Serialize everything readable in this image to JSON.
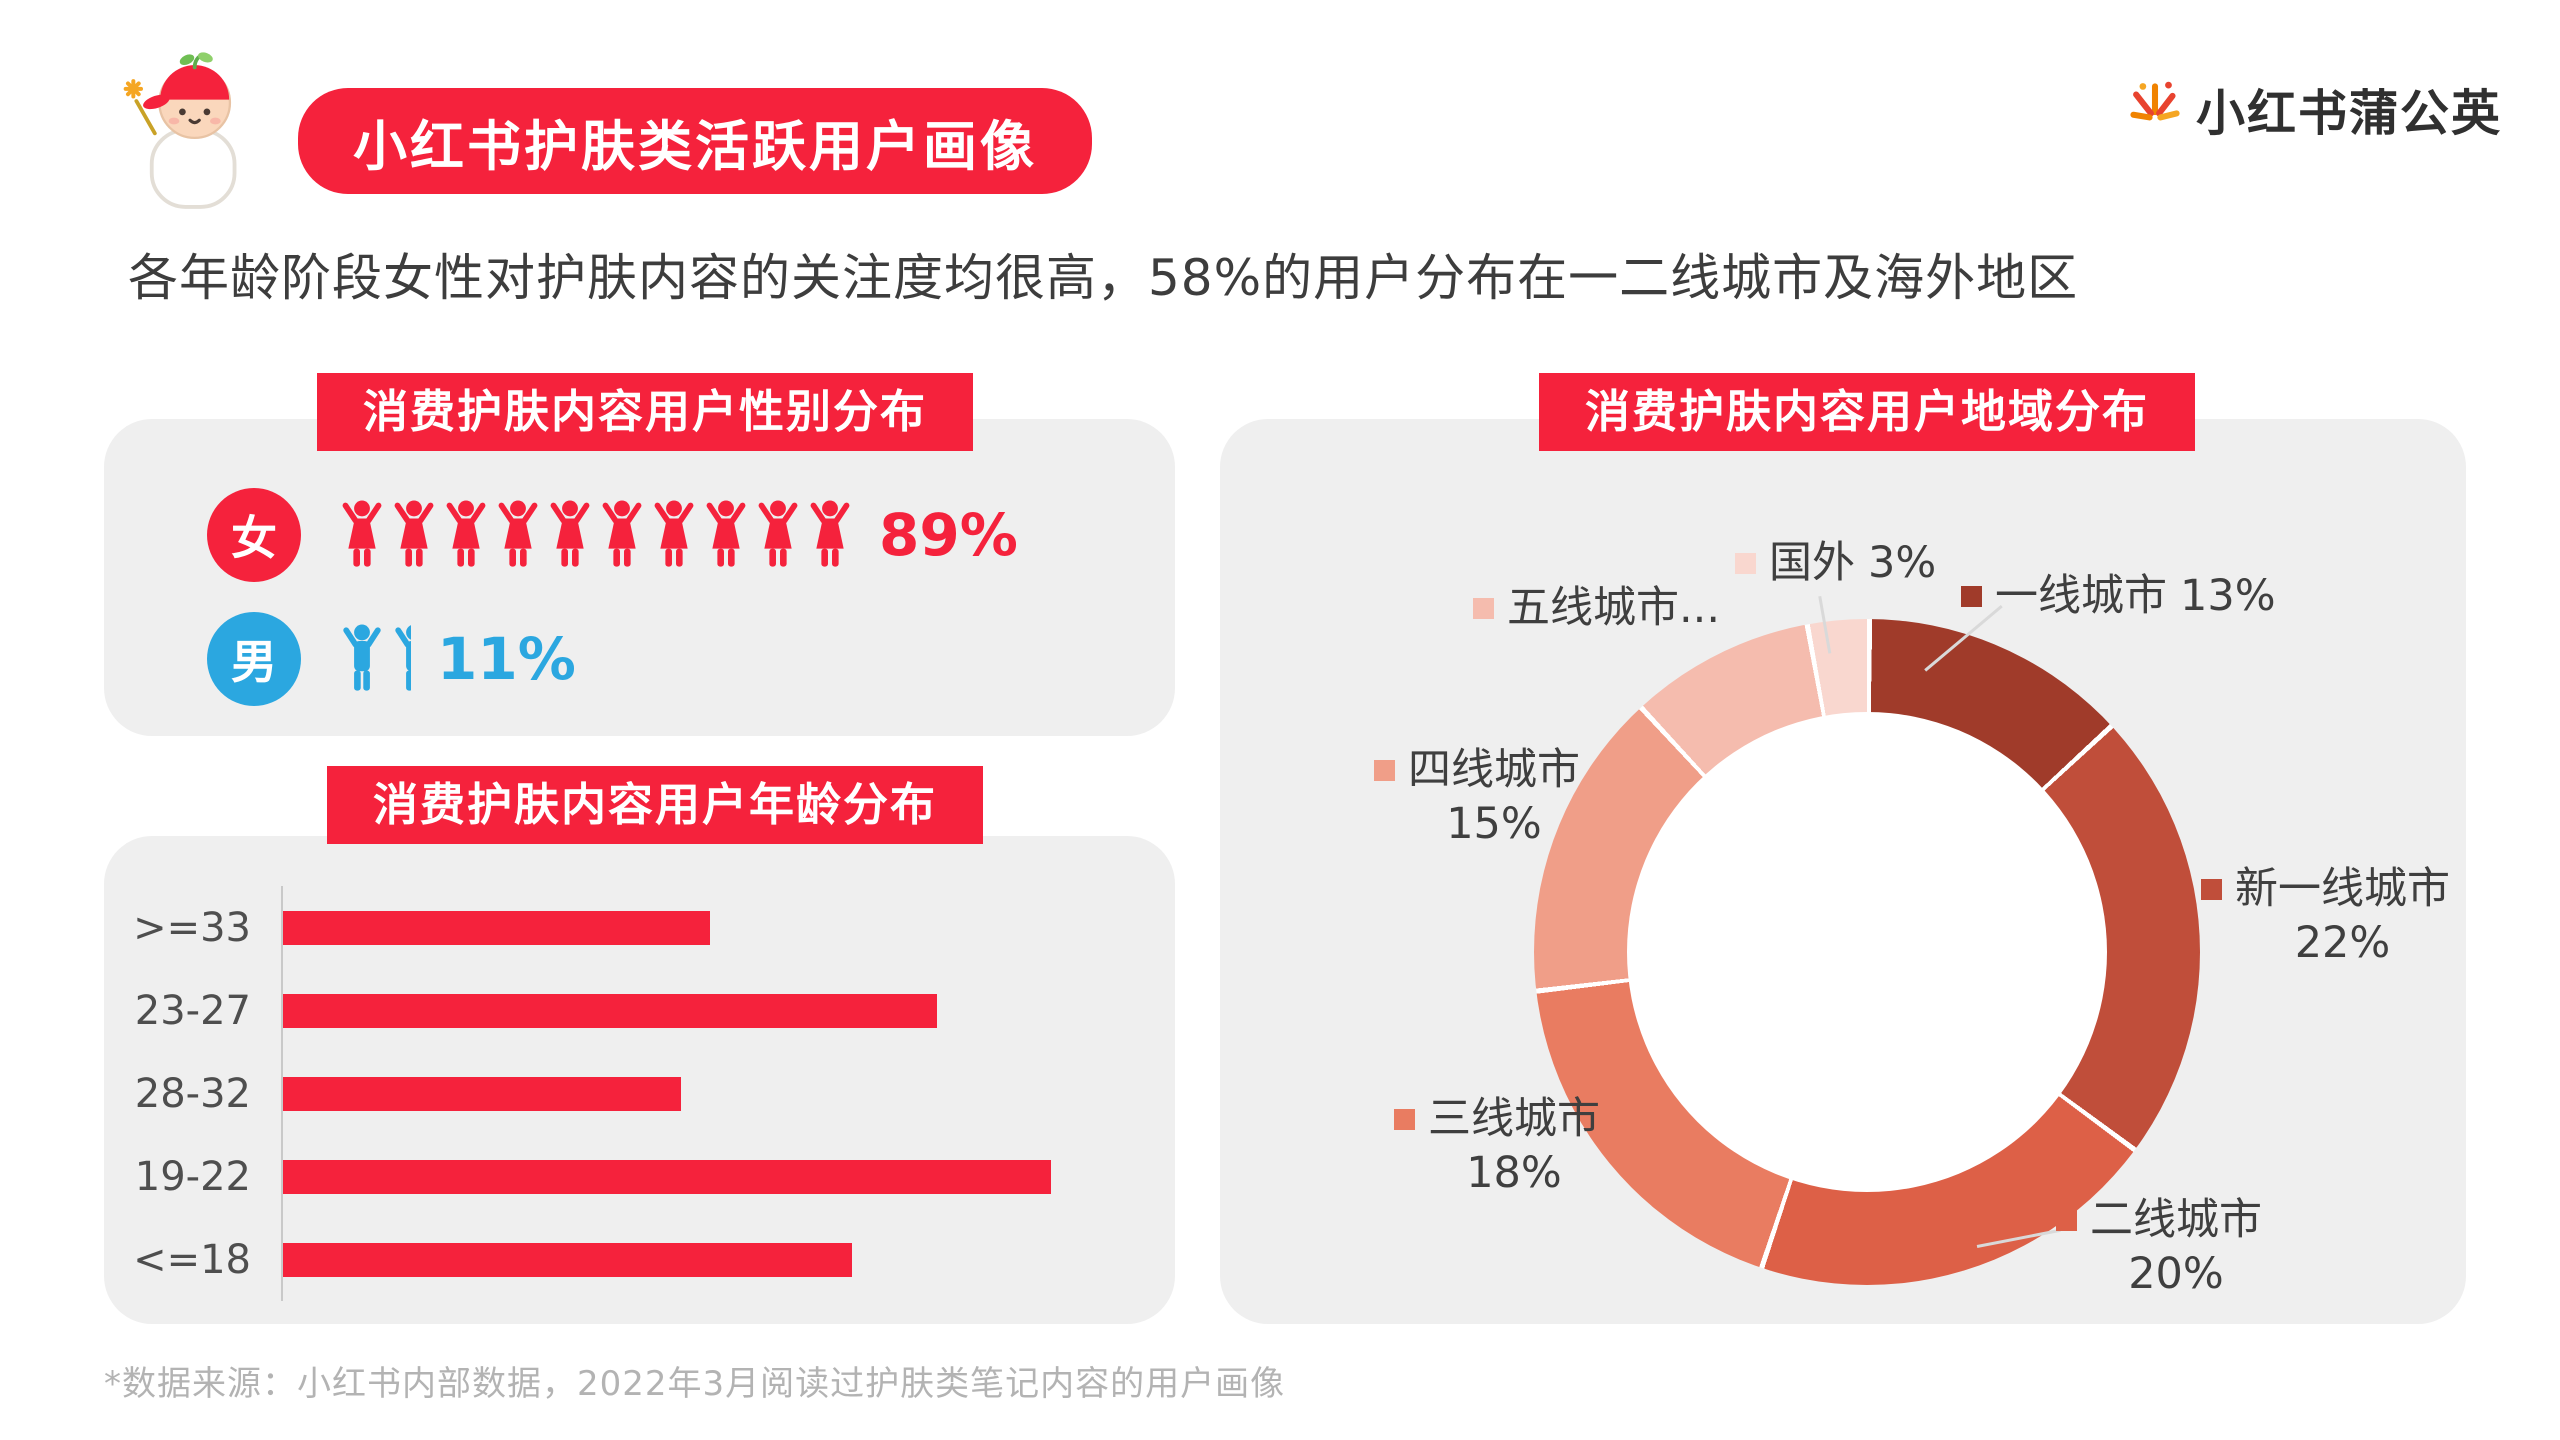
{
  "theme": {
    "accent": "#F5223C",
    "male_blue": "#2BA7E0",
    "panel_bg": "#EFEFEF"
  },
  "header": {
    "badge_title": "小红书护肤类活跃用户画像",
    "logo_text": "小红书蒲公英",
    "subtitle": "各年龄阶段女性对护肤内容的关注度均很高，58%的用户分布在一二线城市及海外地区"
  },
  "gender_panel": {
    "title": "消费护肤内容用户性别分布",
    "female": {
      "label": "女",
      "percent": "89%",
      "icon_count": 10,
      "color": "#F5223C"
    },
    "male": {
      "label": "男",
      "percent": "11%",
      "icon_count_full": 1,
      "partial_icon": true,
      "color": "#2BA7E0"
    }
  },
  "age_panel": {
    "title": "消费护肤内容用户年龄分布",
    "rows": [
      {
        "label": ">=33",
        "value": 15
      },
      {
        "label": "23-27",
        "value": 23
      },
      {
        "label": "28-32",
        "value": 14
      },
      {
        "label": "19-22",
        "value": 27
      },
      {
        "label": "<=18",
        "value": 20
      }
    ]
  },
  "region_panel": {
    "title": "消费护肤内容用户地域分布",
    "slices": [
      {
        "name": "一线城市",
        "display": "一线城市",
        "value": 13,
        "pct": "13%",
        "color": "#A03B2A"
      },
      {
        "name": "新一线城市",
        "display": "新一线城市",
        "value": 22,
        "pct": "22%",
        "color": "#C04E3A"
      },
      {
        "name": "二线城市",
        "display": "二线城市",
        "value": 20,
        "pct": "20%",
        "color": "#DD6047"
      },
      {
        "name": "三线城市",
        "display": "三线城市",
        "value": 18,
        "pct": "18%",
        "color": "#E97C61"
      },
      {
        "name": "四线城市",
        "display": "四线城市",
        "value": 15,
        "pct": "15%",
        "color": "#F09E88"
      },
      {
        "name": "五线城市",
        "display": "五线城市...",
        "value": 9,
        "pct": "",
        "color": "#F5BCAE"
      },
      {
        "name": "国外",
        "display": "国外",
        "value": 3,
        "pct": "3%",
        "color": "#F9D7CF"
      }
    ]
  },
  "footnote": "*数据来源：小红书内部数据，2022年3月阅读过护肤类笔记内容的用户画像",
  "chart_data": [
    {
      "type": "bar",
      "orientation": "horizontal",
      "title": "消费护肤内容用户年龄分布",
      "categories": [
        ">=33",
        "23-27",
        "28-32",
        "19-22",
        "<=18"
      ],
      "values": [
        15,
        23,
        14,
        27,
        20
      ],
      "xlabel": "",
      "ylabel": "",
      "grid": false,
      "value_labels_shown": false
    },
    {
      "type": "pie",
      "subtype": "donut",
      "title": "消费护肤内容用户地域分布",
      "labels": [
        "一线城市",
        "新一线城市",
        "二线城市",
        "三线城市",
        "四线城市",
        "五线城市",
        "国外"
      ],
      "values": [
        13,
        22,
        20,
        18,
        15,
        9,
        3
      ],
      "colors": [
        "#A03B2A",
        "#C04E3A",
        "#DD6047",
        "#E97C61",
        "#F09E88",
        "#F5BCAE",
        "#F9D7CF"
      ],
      "start_angle_deg": 0,
      "direction": "clockwise",
      "legend_position": "around"
    },
    {
      "type": "bar",
      "subtype": "pictograph",
      "title": "消费护肤内容用户性别分布",
      "categories": [
        "女",
        "男"
      ],
      "values": [
        89,
        11
      ]
    }
  ]
}
